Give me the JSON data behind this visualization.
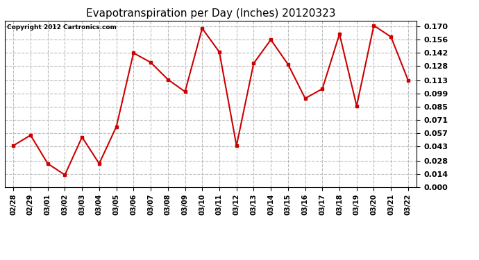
{
  "title": "Evapotranspiration per Day (Inches) 20120323",
  "copyright_text": "Copyright 2012 Cartronics.com",
  "x_labels": [
    "02/28",
    "02/29",
    "03/01",
    "03/02",
    "03/03",
    "03/04",
    "03/05",
    "03/06",
    "03/07",
    "03/08",
    "03/09",
    "03/10",
    "03/11",
    "03/12",
    "03/13",
    "03/14",
    "03/15",
    "03/16",
    "03/17",
    "03/18",
    "03/19",
    "03/20",
    "03/21",
    "03/22"
  ],
  "y_values": [
    0.044,
    0.055,
    0.025,
    0.013,
    0.053,
    0.025,
    0.064,
    0.142,
    0.132,
    0.114,
    0.101,
    0.168,
    0.143,
    0.044,
    0.131,
    0.156,
    0.13,
    0.094,
    0.104,
    0.162,
    0.086,
    0.171,
    0.159,
    0.113
  ],
  "line_color": "#cc0000",
  "marker": "s",
  "marker_size": 3,
  "line_width": 1.5,
  "y_ticks": [
    0.0,
    0.014,
    0.028,
    0.043,
    0.057,
    0.071,
    0.085,
    0.099,
    0.113,
    0.128,
    0.142,
    0.156,
    0.17
  ],
  "ylim": [
    0.0,
    0.176
  ],
  "grid_color": "#bbbbbb",
  "grid_linestyle": "--",
  "bg_color": "#ffffff",
  "title_fontsize": 11,
  "copyright_fontsize": 6.5,
  "tick_fontsize": 8,
  "x_tick_fontsize": 7
}
